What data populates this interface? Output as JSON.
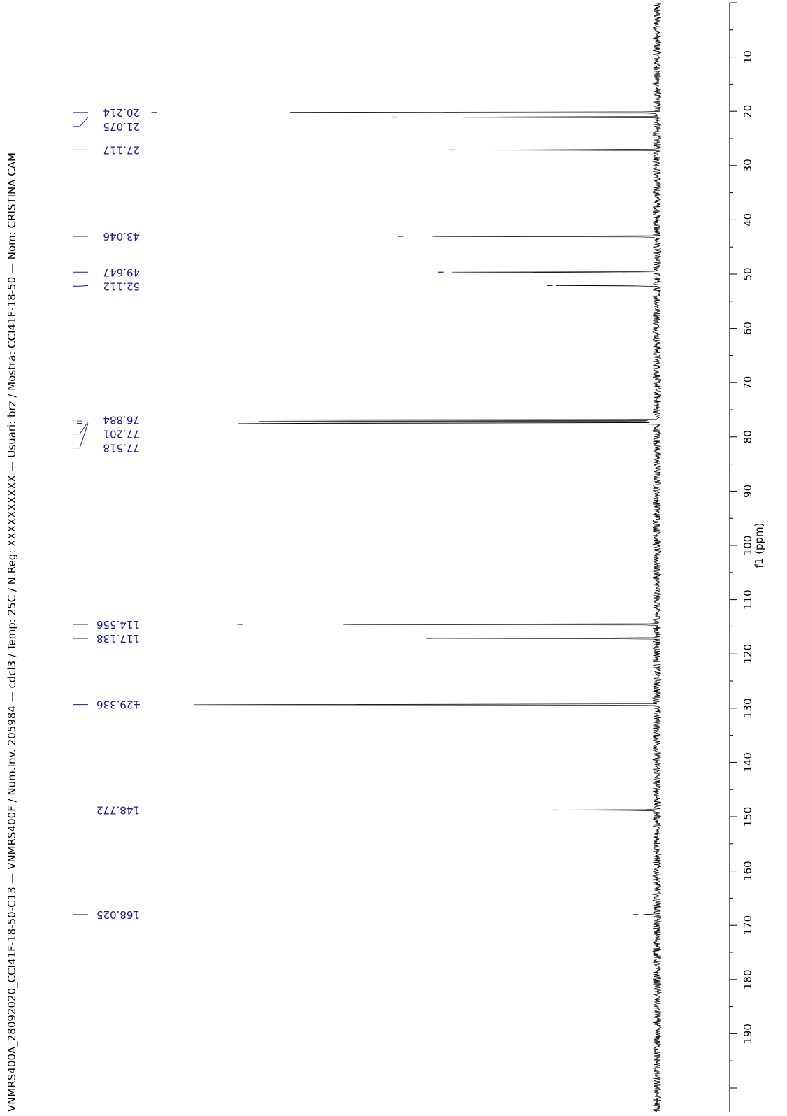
{
  "chart_data": {
    "type": "line",
    "title": "VNMRS400A_28092020_CCI41F-18-50-C13 — VNMRS400F / Num.Inv. 205984 — cdcl3 / Temp: 25C / N.Reg: XXXXXXXXXX — Usuari: brz / Mostra: CCI41F-18-50 — Nom: CRISTINA CAM",
    "xlabel": "f1 (ppm)",
    "xlim": [
      0,
      200
    ],
    "ticks_major": [
      10,
      20,
      30,
      40,
      50,
      60,
      70,
      80,
      90,
      100,
      110,
      120,
      130,
      140,
      150,
      160,
      170,
      180,
      190
    ],
    "tick_labels": [
      "10",
      "20",
      "30",
      "40",
      "50",
      "60",
      "70",
      "80",
      "90",
      "100",
      "110",
      "120",
      "130",
      "140",
      "150",
      "160",
      "170",
      "180",
      "190"
    ],
    "peaks": [
      {
        "ppm": 20.214,
        "label": "20.214",
        "intensity": 0.87
      },
      {
        "ppm": 21.075,
        "label": "21.075",
        "intensity": 0.45
      },
      {
        "ppm": 27.117,
        "label": "27.117",
        "intensity": 0.35
      },
      {
        "ppm": 43.046,
        "label": "43.046",
        "intensity": 0.44
      },
      {
        "ppm": 49.647,
        "label": "49.647",
        "intensity": 0.37
      },
      {
        "ppm": 52.112,
        "label": "52.112",
        "intensity": 0.18
      },
      {
        "ppm": 76.884,
        "label": "76.884",
        "intensity": 1.0
      },
      {
        "ppm": 77.201,
        "label": "77.201",
        "intensity": 1.0
      },
      {
        "ppm": 77.518,
        "label": "77.518",
        "intensity": 1.0
      },
      {
        "ppm": 114.556,
        "label": "114.556",
        "intensity": 0.72
      },
      {
        "ppm": 117.138,
        "label": "117.138",
        "intensity": 0.39
      },
      {
        "ppm": 129.336,
        "label": "129.336",
        "intensity": 0.9
      },
      {
        "ppm": 148.772,
        "label": "148.772",
        "intensity": 0.17
      },
      {
        "ppm": 168.025,
        "label": "168.025",
        "intensity": 0.03
      }
    ],
    "colors": {
      "spectrum": "#000000",
      "labels": "#1a1a8c",
      "axis": "#000000"
    }
  }
}
